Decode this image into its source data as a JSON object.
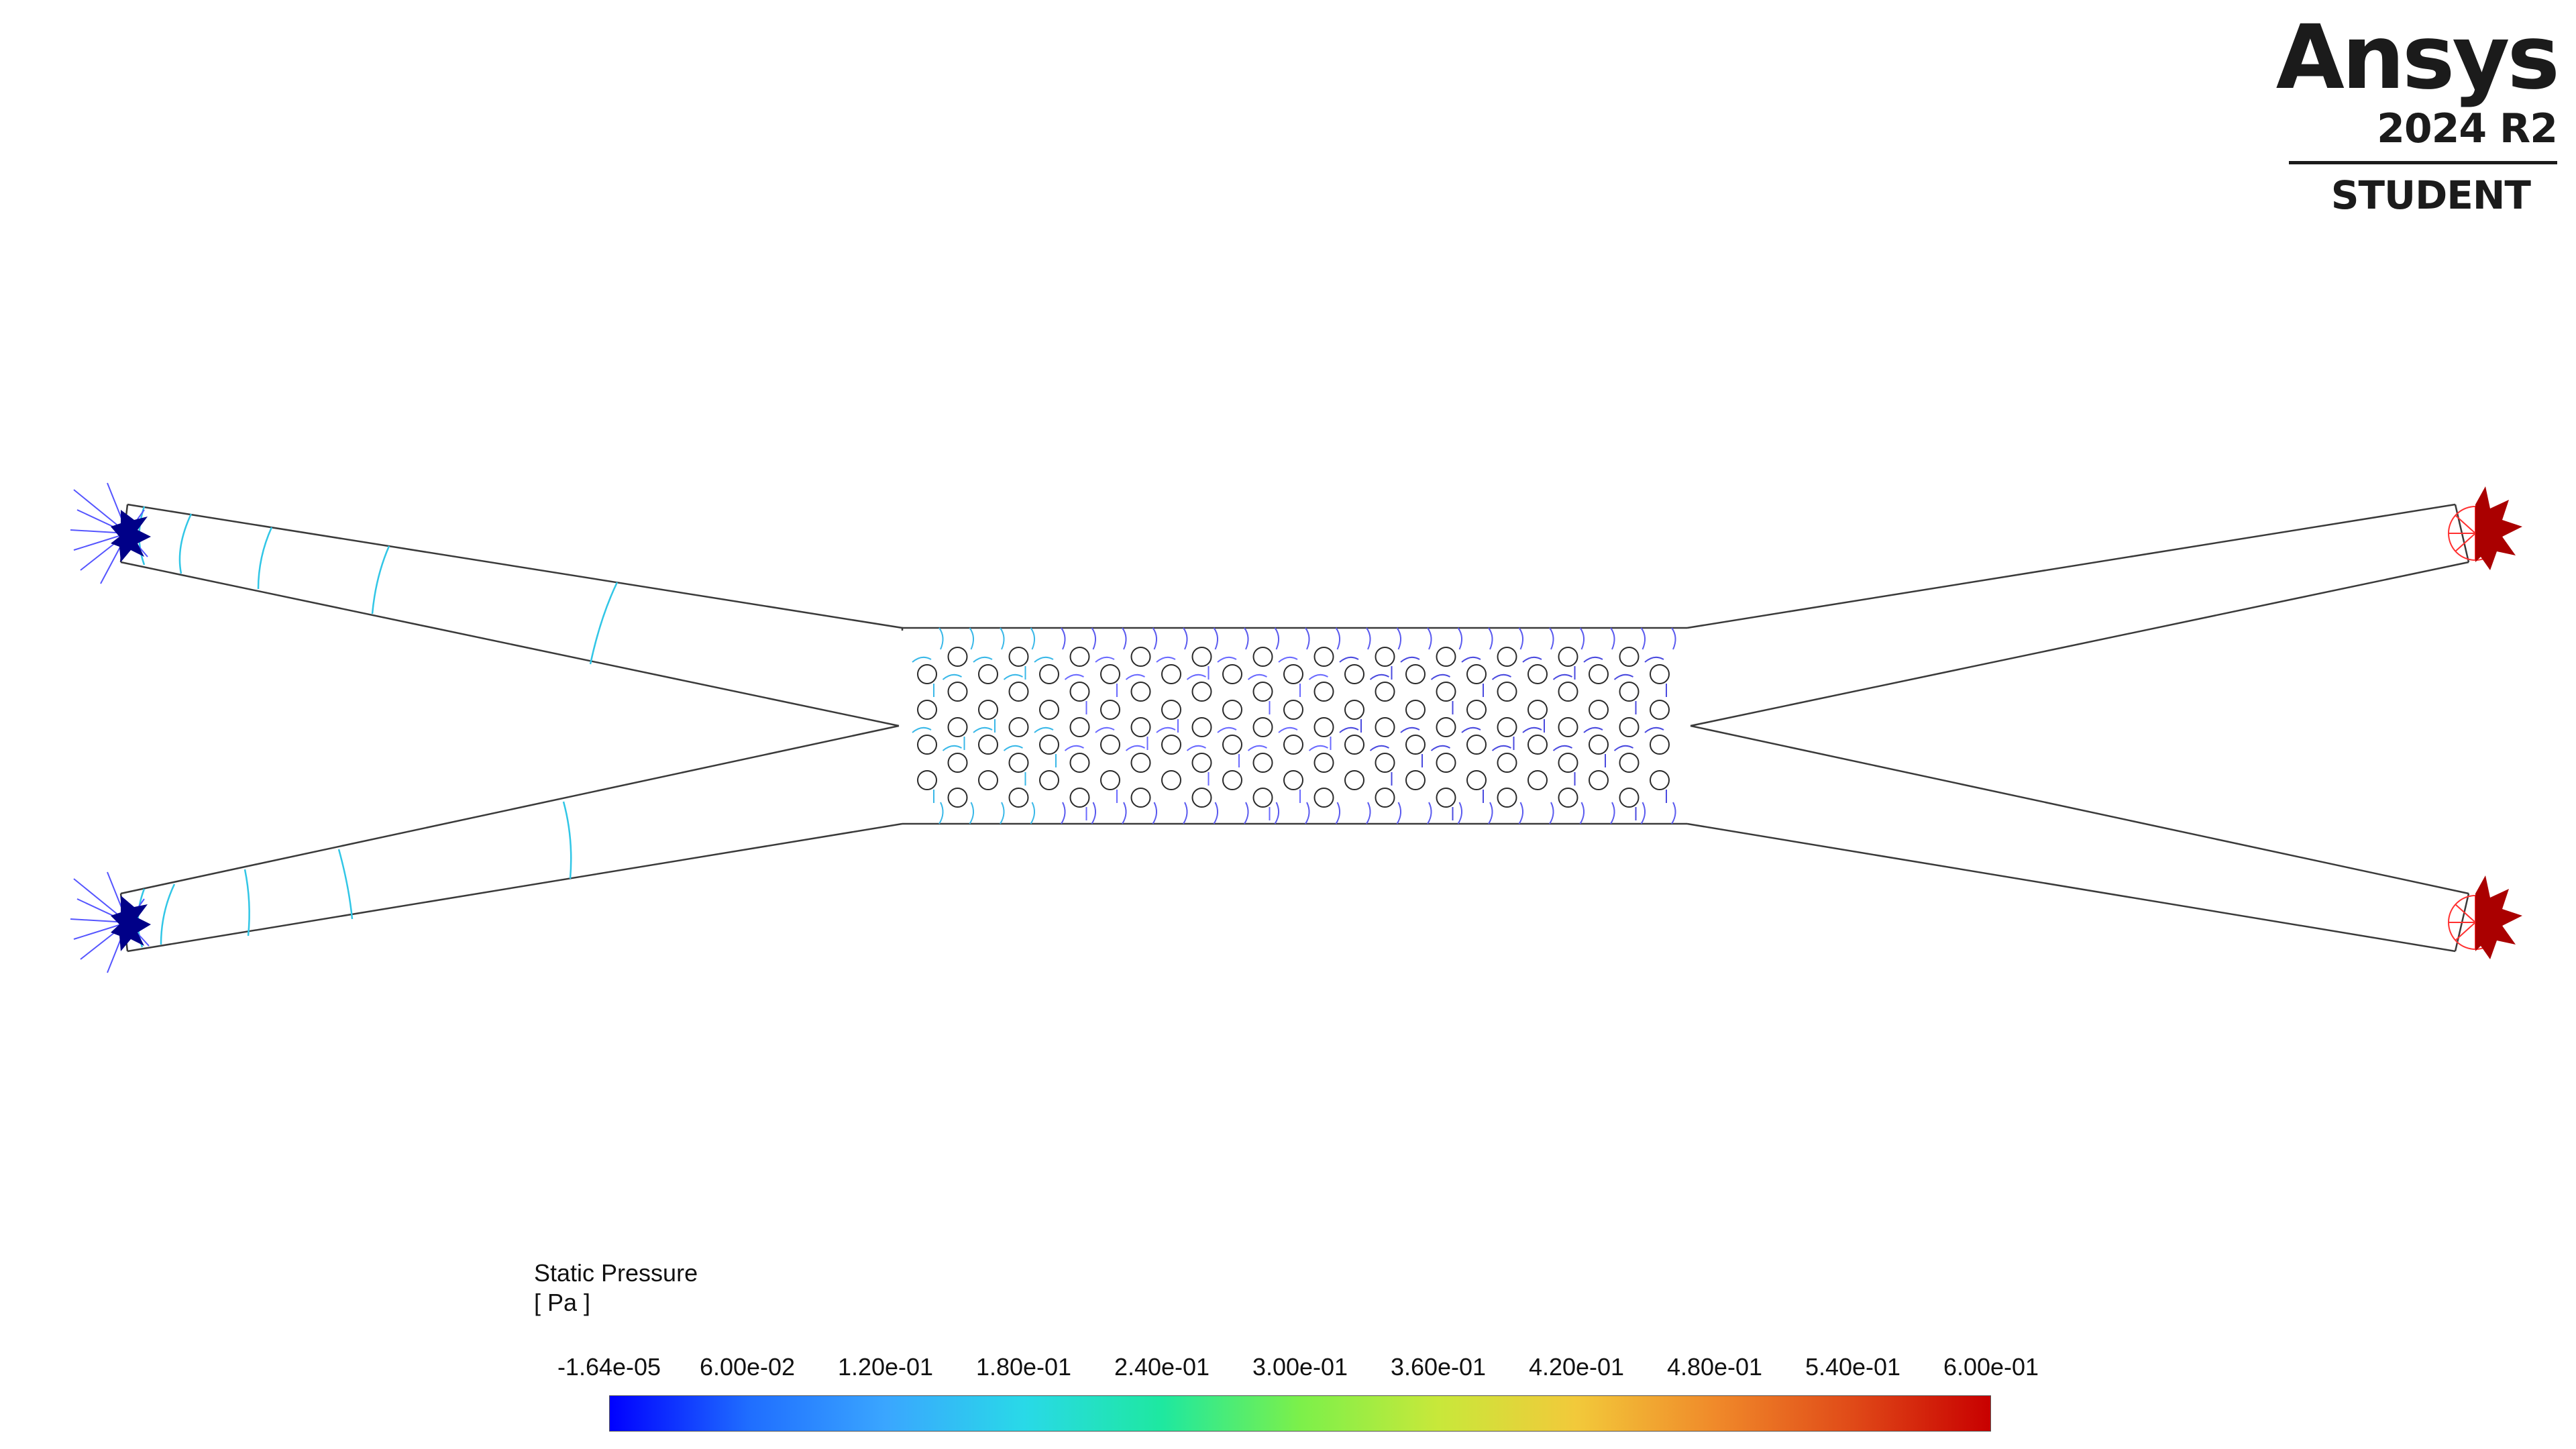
{
  "logo": {
    "wordmark": "Ansys",
    "version": "2024 R2",
    "edition": "STUDENT"
  },
  "legend": {
    "title": "Static Pressure",
    "unit": "[ Pa ]",
    "tick_labels": [
      "-1.64e-05",
      "6.00e-02",
      "1.20e-01",
      "1.80e-01",
      "2.40e-01",
      "3.00e-01",
      "3.60e-01",
      "4.20e-01",
      "4.80e-01",
      "5.40e-01",
      "6.00e-01"
    ],
    "colormap": [
      "#0000ff",
      "#1f6dff",
      "#3aa6ff",
      "#29d9e8",
      "#1ee8a0",
      "#7cf04a",
      "#c8e83a",
      "#f2c93a",
      "#f08a2a",
      "#e04a18",
      "#c80000"
    ]
  },
  "colors": {
    "outline": "#3a3a3a",
    "inlet_low": "#000088",
    "outlet_high": "#aa0000",
    "contour_low": "#4a4aff",
    "contour_cyan": "#31c6e6"
  }
}
